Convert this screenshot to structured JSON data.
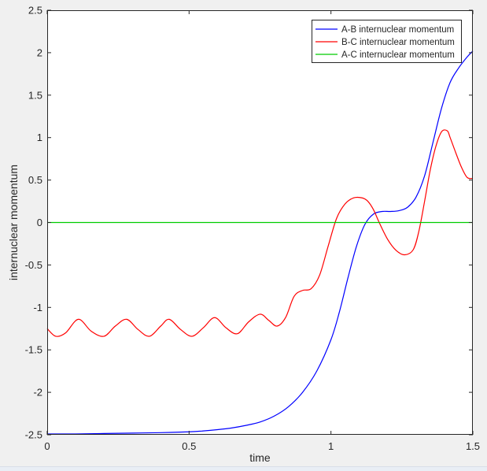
{
  "chart_data": {
    "type": "line",
    "title": "",
    "xlabel": "time",
    "ylabel": "internuclear momentum",
    "xlim": [
      0,
      1.5
    ],
    "ylim": [
      -2.5,
      2.5
    ],
    "xticks": [
      0,
      0.5,
      1,
      1.5
    ],
    "xtick_labels": [
      "0",
      "0.5",
      "1",
      "1.5"
    ],
    "yticks": [
      -2.5,
      -2,
      -1.5,
      -1,
      -0.5,
      0,
      0.5,
      1,
      1.5,
      2,
      2.5
    ],
    "ytick_labels": [
      "-2.5",
      "-2",
      "-1.5",
      "-1",
      "-0.5",
      "0",
      "0.5",
      "1",
      "1.5",
      "2",
      "2.5"
    ],
    "grid": false,
    "legend_position": "top-right",
    "series": [
      {
        "name": "A-B internuclear momentum",
        "color": "#0000ff",
        "x": [
          0,
          0.1,
          0.2,
          0.3,
          0.4,
          0.5,
          0.55,
          0.6,
          0.65,
          0.7,
          0.75,
          0.8,
          0.85,
          0.9,
          0.95,
          1.0,
          1.03,
          1.06,
          1.09,
          1.12,
          1.15,
          1.18,
          1.21,
          1.24,
          1.27,
          1.3,
          1.33,
          1.36,
          1.39,
          1.42,
          1.45,
          1.48,
          1.5
        ],
        "y": [
          -2.49,
          -2.49,
          -2.485,
          -2.48,
          -2.475,
          -2.465,
          -2.455,
          -2.44,
          -2.42,
          -2.39,
          -2.35,
          -2.28,
          -2.17,
          -2.0,
          -1.75,
          -1.38,
          -1.05,
          -0.65,
          -0.28,
          -0.02,
          0.1,
          0.13,
          0.13,
          0.14,
          0.18,
          0.3,
          0.55,
          0.95,
          1.35,
          1.65,
          1.82,
          1.95,
          2.02
        ]
      },
      {
        "name": "B-C internuclear momentum",
        "color": "#ff0000",
        "x": [
          0,
          0.03,
          0.065,
          0.11,
          0.155,
          0.2,
          0.24,
          0.28,
          0.32,
          0.36,
          0.4,
          0.43,
          0.47,
          0.51,
          0.55,
          0.59,
          0.63,
          0.67,
          0.71,
          0.75,
          0.78,
          0.81,
          0.84,
          0.87,
          0.9,
          0.93,
          0.96,
          0.99,
          1.02,
          1.05,
          1.08,
          1.11,
          1.13,
          1.15,
          1.17,
          1.2,
          1.23,
          1.26,
          1.29,
          1.31,
          1.33,
          1.35,
          1.37,
          1.39,
          1.41,
          1.42,
          1.44,
          1.46,
          1.48,
          1.5
        ],
        "y": [
          -1.25,
          -1.34,
          -1.3,
          -1.14,
          -1.28,
          -1.34,
          -1.22,
          -1.14,
          -1.26,
          -1.34,
          -1.22,
          -1.14,
          -1.26,
          -1.34,
          -1.24,
          -1.12,
          -1.24,
          -1.31,
          -1.17,
          -1.08,
          -1.15,
          -1.22,
          -1.12,
          -0.87,
          -0.8,
          -0.78,
          -0.62,
          -0.28,
          0.05,
          0.22,
          0.29,
          0.29,
          0.25,
          0.15,
          0.0,
          -0.2,
          -0.33,
          -0.38,
          -0.32,
          -0.1,
          0.25,
          0.62,
          0.9,
          1.07,
          1.08,
          1.0,
          0.82,
          0.65,
          0.53,
          0.52
        ]
      },
      {
        "name": "A-C internuclear momentum",
        "color": "#00cc00",
        "x": [
          0,
          1.5
        ],
        "y": [
          0,
          0
        ]
      }
    ]
  }
}
